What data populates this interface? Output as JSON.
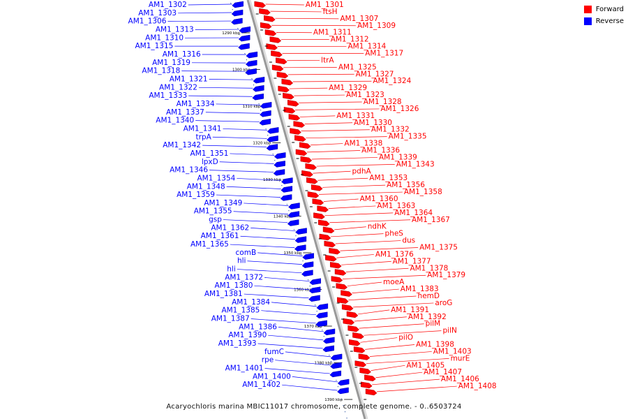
{
  "caption": "Acaryochloris marina MBIC11017 chromosome, complete genome. - 0..6503724",
  "legend": [
    {
      "label": "Forward",
      "color": "#ff0000"
    },
    {
      "label": "Reverse",
      "color": "#0000ff"
    }
  ],
  "colors": {
    "forward": "#ff0000",
    "reverse": "#0000ff",
    "backbone": "#999999"
  },
  "ticks": [
    "1290 kbp",
    "1300 kbp",
    "1310 kbp",
    "1320 kbp",
    "1330 kbp",
    "1340 kbp",
    "1350 kbp",
    "1360 kbp",
    "1370 kbp",
    "1380 kbp",
    "1390 kbp"
  ],
  "forward_genes": [
    "AM1_1301",
    "ftsH",
    "AM1_1307",
    "AM1_1309",
    "AM1_1311",
    "AM1_1312",
    "AM1_1314",
    "AM1_1317",
    "ltrA",
    "AM1_1325",
    "AM1_1327",
    "AM1_1324",
    "AM1_1329",
    "AM1_1323",
    "AM1_1328",
    "AM1_1326",
    "AM1_1331",
    "AM1_1330",
    "AM1_1332",
    "AM1_1335",
    "AM1_1338",
    "AM1_1336",
    "AM1_1339",
    "AM1_1343",
    "pdhA",
    "AM1_1353",
    "AM1_1356",
    "AM1_1358",
    "AM1_1360",
    "AM1_1363",
    "AM1_1364",
    "AM1_1367",
    "ndhK",
    "pheS",
    "dus",
    "AM1_1375",
    "AM1_1376",
    "AM1_1377",
    "AM1_1378",
    "AM1_1379",
    "moeA",
    "AM1_1383",
    "hemD",
    "aroG",
    "AM1_1391",
    "AM1_1392",
    "pilM",
    "pilN",
    "pilO",
    "AM1_1398",
    "AM1_1403",
    "murE",
    "AM1_1405",
    "AM1_1407",
    "AM1_1406",
    "AM1_1408"
  ],
  "reverse_genes": [
    "AM1_1302",
    "AM1_1303",
    "AM1_1306",
    "AM1_1313",
    "AM1_1310",
    "AM1_1315",
    "AM1_1316",
    "AM1_1319",
    "AM1_1318",
    "AM1_1321",
    "AM1_1322",
    "AM1_1333",
    "AM1_1334",
    "AM1_1337",
    "AM1_1340",
    "AM1_1341",
    "trpA",
    "AM1_1342",
    "AM1_1351",
    "lpxD",
    "AM1_1346",
    "AM1_1354",
    "AM1_1348",
    "AM1_1359",
    "AM1_1349",
    "AM1_1355",
    "gsp",
    "AM1_1362",
    "AM1_1361",
    "AM1_1365",
    "comB",
    "hli",
    "hli",
    "AM1_1372",
    "AM1_1380",
    "AM1_1381",
    "AM1_1384",
    "AM1_1385",
    "AM1_1387",
    "AM1_1386",
    "AM1_1390",
    "AM1_1393",
    "fumC",
    "rpe",
    "AM1_1401",
    "AM1_1400",
    "AM1_1402"
  ]
}
